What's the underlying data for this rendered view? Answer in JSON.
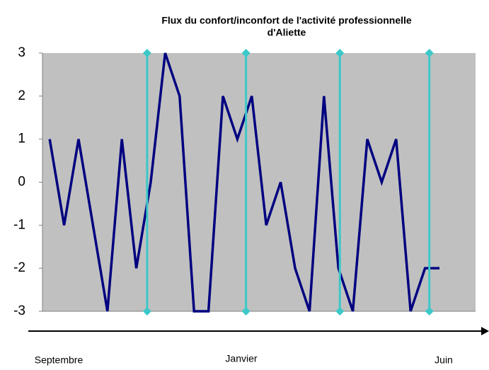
{
  "chart_data": {
    "type": "line",
    "title": [
      "Flux du confort/inconfort de l'activité professionnelle",
      "d'Aliette"
    ],
    "categories": [
      null,
      null,
      null,
      null,
      null,
      null,
      null,
      null,
      null,
      null,
      null,
      null,
      null,
      null,
      null,
      null,
      null,
      null,
      null,
      null,
      null,
      null,
      null,
      null,
      null,
      null,
      null,
      null
    ],
    "series": [
      {
        "color": "#000080",
        "values": [
          1,
          -1,
          1,
          -1,
          -3,
          1,
          -2,
          0,
          3,
          2,
          -3,
          -3,
          2,
          1,
          2,
          -1,
          0,
          -2,
          -3,
          2,
          -2,
          -3,
          1,
          0,
          1,
          -3,
          -2,
          -2
        ]
      }
    ],
    "vertical_lines": {
      "color": "#3cc8c8",
      "x": [
        6.75,
        13.6,
        20.1,
        26.3
      ]
    },
    "ylim": [
      -3,
      3
    ],
    "yticks": [
      -3,
      -2,
      -1,
      0,
      1,
      2,
      3
    ],
    "plot_background": "#c0c0c0",
    "timeline_labels": [
      "Septembre",
      "Janvier",
      "Juin"
    ]
  }
}
